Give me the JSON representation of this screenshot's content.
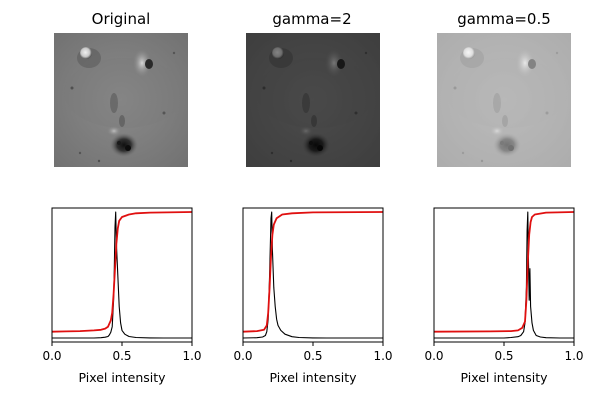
{
  "figure": {
    "titles": [
      "Original",
      "gamma=2",
      "gamma=0.5"
    ]
  },
  "chart_data": [
    {
      "type": "image",
      "title": "Original",
      "description_tone": "mid-gray lunar surface, cratered, dark blotch lower-middle, bright crater top-left",
      "brightness_shift": 0.0
    },
    {
      "type": "image",
      "title": "gamma=2",
      "description_tone": "same image darkened",
      "brightness_shift": -0.25
    },
    {
      "type": "image",
      "title": "gamma=0.5",
      "description_tone": "same image brightened",
      "brightness_shift": 0.22
    },
    {
      "type": "line",
      "subtype": "histogram_with_cdf",
      "xlabel": "Pixel intensity",
      "xlim": [
        0.0,
        1.0
      ],
      "xticks": [
        0.0,
        0.5,
        1.0
      ],
      "xtick_labels": [
        "0.0",
        "0.5",
        "1.0"
      ],
      "yticks": [],
      "series": [
        {
          "kind": "histogram",
          "color": "#000000",
          "points": [
            [
              0.0,
              0
            ],
            [
              0.3,
              0
            ],
            [
              0.35,
              0.002
            ],
            [
              0.38,
              0.006
            ],
            [
              0.4,
              0.012
            ],
            [
              0.41,
              0.025
            ],
            [
              0.42,
              0.045
            ],
            [
              0.43,
              0.09
            ],
            [
              0.44,
              0.3
            ],
            [
              0.445,
              0.55
            ],
            [
              0.45,
              0.88
            ],
            [
              0.455,
              1.0
            ],
            [
              0.46,
              0.75
            ],
            [
              0.47,
              0.5
            ],
            [
              0.48,
              0.25
            ],
            [
              0.49,
              0.12
            ],
            [
              0.5,
              0.06
            ],
            [
              0.52,
              0.03
            ],
            [
              0.55,
              0.012
            ],
            [
              0.6,
              0.004
            ],
            [
              0.7,
              0.001
            ],
            [
              0.8,
              0
            ],
            [
              1.0,
              0
            ]
          ]
        },
        {
          "kind": "cdf",
          "color": "#e01010",
          "points": [
            [
              0.0,
              0.05
            ],
            [
              0.1,
              0.052
            ],
            [
              0.2,
              0.055
            ],
            [
              0.3,
              0.06
            ],
            [
              0.35,
              0.065
            ],
            [
              0.38,
              0.075
            ],
            [
              0.4,
              0.09
            ],
            [
              0.42,
              0.14
            ],
            [
              0.43,
              0.2
            ],
            [
              0.44,
              0.35
            ],
            [
              0.45,
              0.55
            ],
            [
              0.46,
              0.75
            ],
            [
              0.47,
              0.87
            ],
            [
              0.48,
              0.93
            ],
            [
              0.5,
              0.96
            ],
            [
              0.55,
              0.98
            ],
            [
              0.6,
              0.99
            ],
            [
              0.7,
              0.995
            ],
            [
              1.0,
              1.0
            ]
          ]
        }
      ]
    },
    {
      "type": "line",
      "subtype": "histogram_with_cdf",
      "xlabel": "Pixel intensity",
      "xlim": [
        0.0,
        1.0
      ],
      "xticks": [
        0.0,
        0.5,
        1.0
      ],
      "xtick_labels": [
        "0.0",
        "0.5",
        "1.0"
      ],
      "yticks": [],
      "series": [
        {
          "kind": "histogram",
          "color": "#000000",
          "points": [
            [
              0.0,
              0
            ],
            [
              0.1,
              0.002
            ],
            [
              0.14,
              0.008
            ],
            [
              0.16,
              0.02
            ],
            [
              0.17,
              0.05
            ],
            [
              0.18,
              0.15
            ],
            [
              0.19,
              0.5
            ],
            [
              0.2,
              0.95
            ],
            [
              0.205,
              1.0
            ],
            [
              0.21,
              0.7
            ],
            [
              0.22,
              0.4
            ],
            [
              0.23,
              0.25
            ],
            [
              0.24,
              0.15
            ],
            [
              0.25,
              0.1
            ],
            [
              0.27,
              0.06
            ],
            [
              0.3,
              0.03
            ],
            [
              0.35,
              0.01
            ],
            [
              0.4,
              0.004
            ],
            [
              0.5,
              0.001
            ],
            [
              0.6,
              0
            ],
            [
              1.0,
              0
            ]
          ]
        },
        {
          "kind": "cdf",
          "color": "#e01010",
          "points": [
            [
              0.0,
              0.05
            ],
            [
              0.1,
              0.055
            ],
            [
              0.15,
              0.065
            ],
            [
              0.17,
              0.1
            ],
            [
              0.18,
              0.2
            ],
            [
              0.19,
              0.4
            ],
            [
              0.2,
              0.65
            ],
            [
              0.21,
              0.82
            ],
            [
              0.22,
              0.9
            ],
            [
              0.24,
              0.95
            ],
            [
              0.28,
              0.98
            ],
            [
              0.35,
              0.99
            ],
            [
              0.5,
              0.997
            ],
            [
              1.0,
              1.0
            ]
          ]
        }
      ]
    },
    {
      "type": "line",
      "subtype": "histogram_with_cdf",
      "xlabel": "Pixel intensity",
      "xlim": [
        0.0,
        1.0
      ],
      "xticks": [
        0.0,
        0.5,
        1.0
      ],
      "xtick_labels": [
        "0.0",
        "0.5",
        "1.0"
      ],
      "yticks": [],
      "series": [
        {
          "kind": "histogram",
          "color": "#000000",
          "points": [
            [
              0.0,
              0
            ],
            [
              0.5,
              0
            ],
            [
              0.55,
              0.004
            ],
            [
              0.6,
              0.01
            ],
            [
              0.62,
              0.02
            ],
            [
              0.64,
              0.05
            ],
            [
              0.65,
              0.12
            ],
            [
              0.66,
              0.4
            ],
            [
              0.665,
              0.85
            ],
            [
              0.67,
              1.0
            ],
            [
              0.675,
              0.6
            ],
            [
              0.68,
              0.3
            ],
            [
              0.685,
              0.55
            ],
            [
              0.69,
              0.25
            ],
            [
              0.7,
              0.12
            ],
            [
              0.71,
              0.06
            ],
            [
              0.73,
              0.02
            ],
            [
              0.76,
              0.008
            ],
            [
              0.8,
              0.002
            ],
            [
              0.9,
              0
            ],
            [
              1.0,
              0
            ]
          ]
        },
        {
          "kind": "cdf",
          "color": "#e01010",
          "points": [
            [
              0.0,
              0.05
            ],
            [
              0.4,
              0.052
            ],
            [
              0.55,
              0.055
            ],
            [
              0.6,
              0.06
            ],
            [
              0.63,
              0.08
            ],
            [
              0.65,
              0.13
            ],
            [
              0.66,
              0.3
            ],
            [
              0.67,
              0.6
            ],
            [
              0.68,
              0.82
            ],
            [
              0.69,
              0.92
            ],
            [
              0.7,
              0.96
            ],
            [
              0.72,
              0.98
            ],
            [
              0.8,
              0.995
            ],
            [
              1.0,
              1.0
            ]
          ]
        }
      ]
    }
  ]
}
